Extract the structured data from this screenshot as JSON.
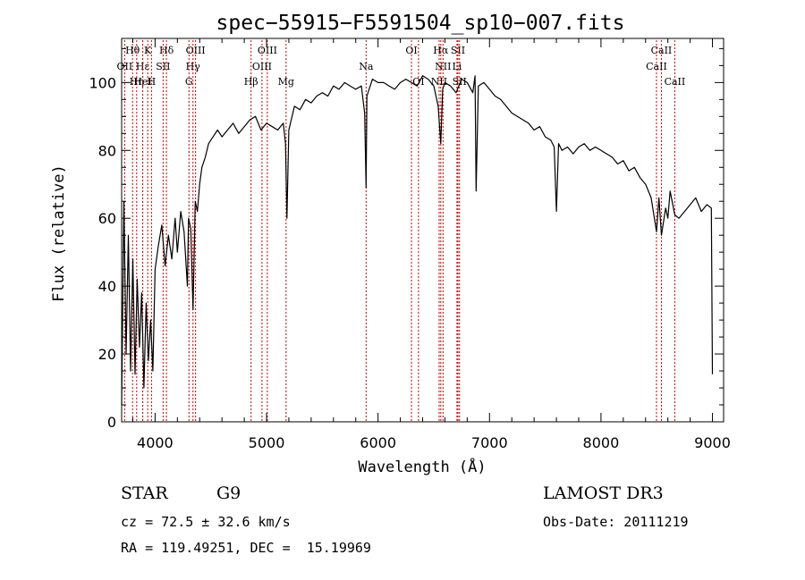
{
  "chart_data": {
    "type": "line",
    "title": "spec−55915−F5591504_sp10−007.fits",
    "xlabel": "Wavelength (Å)",
    "ylabel": "Flux (relative)",
    "xlim": [
      3700,
      9100
    ],
    "ylim": [
      0,
      113
    ],
    "xticks": [
      4000,
      5000,
      6000,
      7000,
      8000,
      9000
    ],
    "yticks": [
      0,
      20,
      40,
      60,
      80,
      100
    ],
    "grid": false,
    "series": [
      {
        "color": "#000000",
        "x": [
          3700,
          3720,
          3740,
          3760,
          3780,
          3800,
          3820,
          3840,
          3860,
          3880,
          3900,
          3920,
          3940,
          3960,
          3980,
          4000,
          4030,
          4060,
          4090,
          4120,
          4150,
          4180,
          4200,
          4230,
          4260,
          4290,
          4300,
          4320,
          4340,
          4360,
          4380,
          4400,
          4420,
          4450,
          4480,
          4520,
          4560,
          4600,
          4650,
          4700,
          4750,
          4800,
          4850,
          4900,
          4950,
          5000,
          5050,
          5100,
          5150,
          5170,
          5183,
          5200,
          5250,
          5300,
          5350,
          5400,
          5450,
          5500,
          5550,
          5600,
          5650,
          5700,
          5750,
          5800,
          5850,
          5880,
          5893,
          5900,
          5950,
          6000,
          6050,
          6100,
          6150,
          6200,
          6250,
          6300,
          6350,
          6400,
          6450,
          6500,
          6540,
          6563,
          6580,
          6600,
          6650,
          6700,
          6750,
          6800,
          6850,
          6870,
          6880,
          6900,
          6950,
          7000,
          7050,
          7100,
          7150,
          7200,
          7250,
          7300,
          7350,
          7400,
          7450,
          7500,
          7550,
          7580,
          7600,
          7620,
          7650,
          7700,
          7750,
          7800,
          7850,
          7900,
          7950,
          8000,
          8050,
          8100,
          8150,
          8200,
          8250,
          8300,
          8350,
          8400,
          8450,
          8498,
          8520,
          8542,
          8580,
          8600,
          8620,
          8662,
          8700,
          8750,
          8800,
          8850,
          8900,
          8950,
          8990,
          9000
        ],
        "y": [
          5,
          65,
          20,
          55,
          15,
          48,
          14,
          42,
          22,
          38,
          10,
          35,
          18,
          30,
          15,
          45,
          52,
          58,
          46,
          55,
          48,
          60,
          50,
          62,
          56,
          40,
          60,
          57,
          33,
          65,
          62,
          70,
          75,
          78,
          82,
          84,
          86,
          84,
          86,
          88,
          85,
          87,
          89,
          90,
          86,
          88,
          87,
          86,
          88,
          82,
          60,
          86,
          93,
          92,
          95,
          94,
          96,
          97,
          96,
          99,
          98,
          100,
          99,
          98,
          99,
          91,
          69,
          96,
          101,
          100,
          100,
          99,
          98,
          100,
          101,
          100,
          99,
          102,
          101,
          99,
          93,
          82,
          98,
          100,
          99,
          97,
          101,
          100,
          97,
          102,
          68,
          99,
          100,
          98,
          96,
          95,
          93,
          91,
          90,
          89,
          88,
          86,
          87,
          84,
          83,
          81,
          62,
          82,
          80,
          81,
          79,
          81,
          82,
          80,
          81,
          80,
          79,
          78,
          76,
          77,
          74,
          75,
          72,
          70,
          66,
          56,
          66,
          55,
          63,
          60,
          68,
          61,
          60,
          62,
          64,
          66,
          62,
          64,
          63,
          14
        ]
      }
    ],
    "line_markers": [
      {
        "label": "Hθ",
        "x": 3798,
        "row": 0
      },
      {
        "label": "OII",
        "x": 3727,
        "row": 1
      },
      {
        "label": "Hη",
        "x": 3835,
        "row": 2
      },
      {
        "label": "Hε",
        "x": 3889,
        "row": 1
      },
      {
        "label": "HeI",
        "x": 3889,
        "row": 2
      },
      {
        "label": "K",
        "x": 3934,
        "row": 0
      },
      {
        "label": "H",
        "x": 3968,
        "row": 2
      },
      {
        "label": "SII",
        "x": 4072,
        "row": 1
      },
      {
        "label": "Hδ",
        "x": 4102,
        "row": 0
      },
      {
        "label": "OIII",
        "x": 4363,
        "row": 0
      },
      {
        "label": "Hγ",
        "x": 4340,
        "row": 1
      },
      {
        "label": "G",
        "x": 4304,
        "row": 2
      },
      {
        "label": "OIII",
        "x": 5007,
        "row": 0
      },
      {
        "label": "OIII",
        "x": 4959,
        "row": 1
      },
      {
        "label": "Hβ",
        "x": 4861,
        "row": 2
      },
      {
        "label": "Mg",
        "x": 5175,
        "row": 2
      },
      {
        "label": "Na",
        "x": 5893,
        "row": 1
      },
      {
        "label": "OI",
        "x": 6300,
        "row": 0
      },
      {
        "label": "OI",
        "x": 6363,
        "row": 2
      },
      {
        "label": "Hα",
        "x": 6563,
        "row": 0
      },
      {
        "label": "NII",
        "x": 6583,
        "row": 1
      },
      {
        "label": "NII",
        "x": 6548,
        "row": 2
      },
      {
        "label": "SII",
        "x": 6717,
        "row": 0
      },
      {
        "label": "Li",
        "x": 6708,
        "row": 1
      },
      {
        "label": "SII",
        "x": 6731,
        "row": 2
      },
      {
        "label": "CaII",
        "x": 8542,
        "row": 0
      },
      {
        "label": "CaII",
        "x": 8498,
        "row": 1
      },
      {
        "label": "CaII",
        "x": 8662,
        "row": 2
      }
    ],
    "marker_color": "#cc0000"
  },
  "info": {
    "object_class": "STAR",
    "subclass": "G9",
    "survey": "LAMOST DR3",
    "redshift": "cz = 72.5 ± 32.6 km/s",
    "obs_date": "Obs-Date: 20111219",
    "coords": "RA = 119.49251, DEC =  15.19969"
  }
}
